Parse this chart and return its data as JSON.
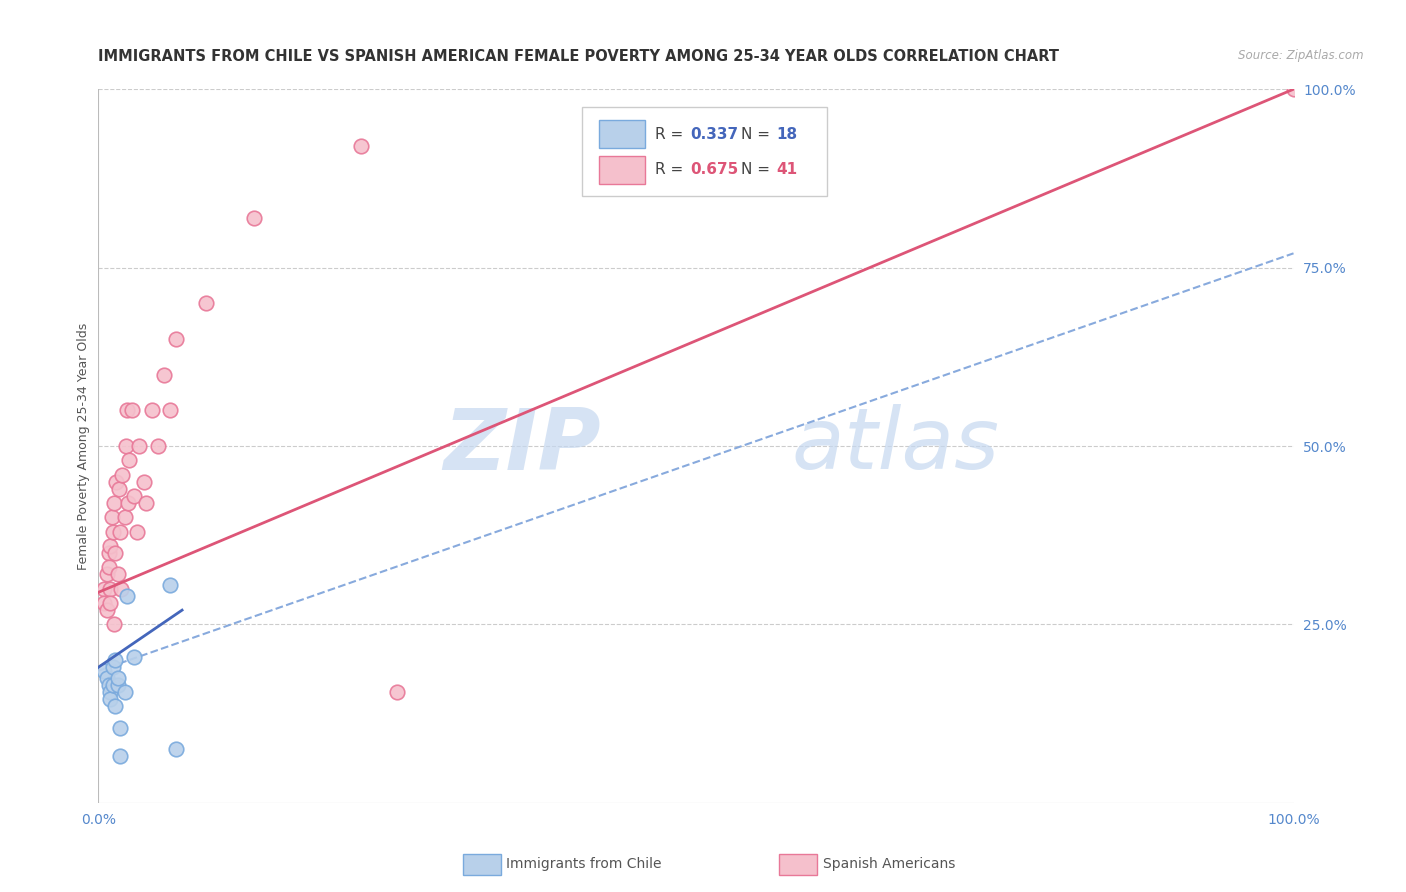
{
  "title": "IMMIGRANTS FROM CHILE VS SPANISH AMERICAN FEMALE POVERTY AMONG 25-34 YEAR OLDS CORRELATION CHART",
  "source": "Source: ZipAtlas.com",
  "ylabel": "Female Poverty Among 25-34 Year Olds",
  "xlim": [
    0.0,
    1.0
  ],
  "ylim": [
    0.0,
    1.0
  ],
  "xticks": [
    0.0,
    0.25,
    0.5,
    0.75,
    1.0
  ],
  "xticklabels": [
    "0.0%",
    "",
    "",
    "",
    "100.0%"
  ],
  "yticks_right": [
    0.25,
    0.5,
    0.75,
    1.0
  ],
  "yticklabels_right": [
    "25.0%",
    "50.0%",
    "75.0%",
    "100.0%"
  ],
  "blue_color": "#b8d0ea",
  "blue_edge_color": "#7aaadd",
  "pink_color": "#f5c0cc",
  "pink_edge_color": "#e87898",
  "trend_blue_color": "#4466bb",
  "trend_pink_color": "#dd5577",
  "dashed_line_color": "#88aadd",
  "watermark_zip": "ZIP",
  "watermark_atlas": "atlas",
  "legend_R_blue": "0.337",
  "legend_N_blue": "18",
  "legend_R_pink": "0.675",
  "legend_N_pink": "41",
  "blue_scatter_x": [
    0.005,
    0.007,
    0.009,
    0.01,
    0.01,
    0.012,
    0.012,
    0.014,
    0.014,
    0.016,
    0.016,
    0.018,
    0.018,
    0.022,
    0.024,
    0.03,
    0.06,
    0.065
  ],
  "blue_scatter_y": [
    0.185,
    0.175,
    0.165,
    0.155,
    0.145,
    0.19,
    0.165,
    0.2,
    0.135,
    0.165,
    0.175,
    0.105,
    0.065,
    0.155,
    0.29,
    0.205,
    0.305,
    0.075
  ],
  "pink_scatter_x": [
    0.005,
    0.005,
    0.007,
    0.007,
    0.009,
    0.009,
    0.01,
    0.01,
    0.01,
    0.011,
    0.012,
    0.013,
    0.013,
    0.014,
    0.015,
    0.016,
    0.017,
    0.018,
    0.019,
    0.02,
    0.022,
    0.023,
    0.024,
    0.025,
    0.026,
    0.028,
    0.03,
    0.032,
    0.034,
    0.038,
    0.04,
    0.045,
    0.05,
    0.055,
    0.06,
    0.065,
    0.09,
    0.13,
    0.22,
    0.25,
    1.0
  ],
  "pink_scatter_y": [
    0.3,
    0.28,
    0.32,
    0.27,
    0.35,
    0.33,
    0.3,
    0.36,
    0.28,
    0.4,
    0.38,
    0.25,
    0.42,
    0.35,
    0.45,
    0.32,
    0.44,
    0.38,
    0.3,
    0.46,
    0.4,
    0.5,
    0.55,
    0.42,
    0.48,
    0.55,
    0.43,
    0.38,
    0.5,
    0.45,
    0.42,
    0.55,
    0.5,
    0.6,
    0.55,
    0.65,
    0.7,
    0.82,
    0.92,
    0.155,
    1.0
  ],
  "blue_trend_x": [
    0.0,
    0.07
  ],
  "blue_trend_y": [
    0.19,
    0.27
  ],
  "pink_trend_x": [
    0.0,
    1.0
  ],
  "pink_trend_y": [
    0.295,
    1.0
  ],
  "dashed_line_x": [
    0.0,
    1.0
  ],
  "dashed_line_y": [
    0.185,
    0.77
  ],
  "marker_size": 110,
  "title_fontsize": 10.5,
  "axis_tick_fontsize": 10,
  "ylabel_fontsize": 9,
  "background_color": "#ffffff",
  "grid_color": "#cccccc"
}
